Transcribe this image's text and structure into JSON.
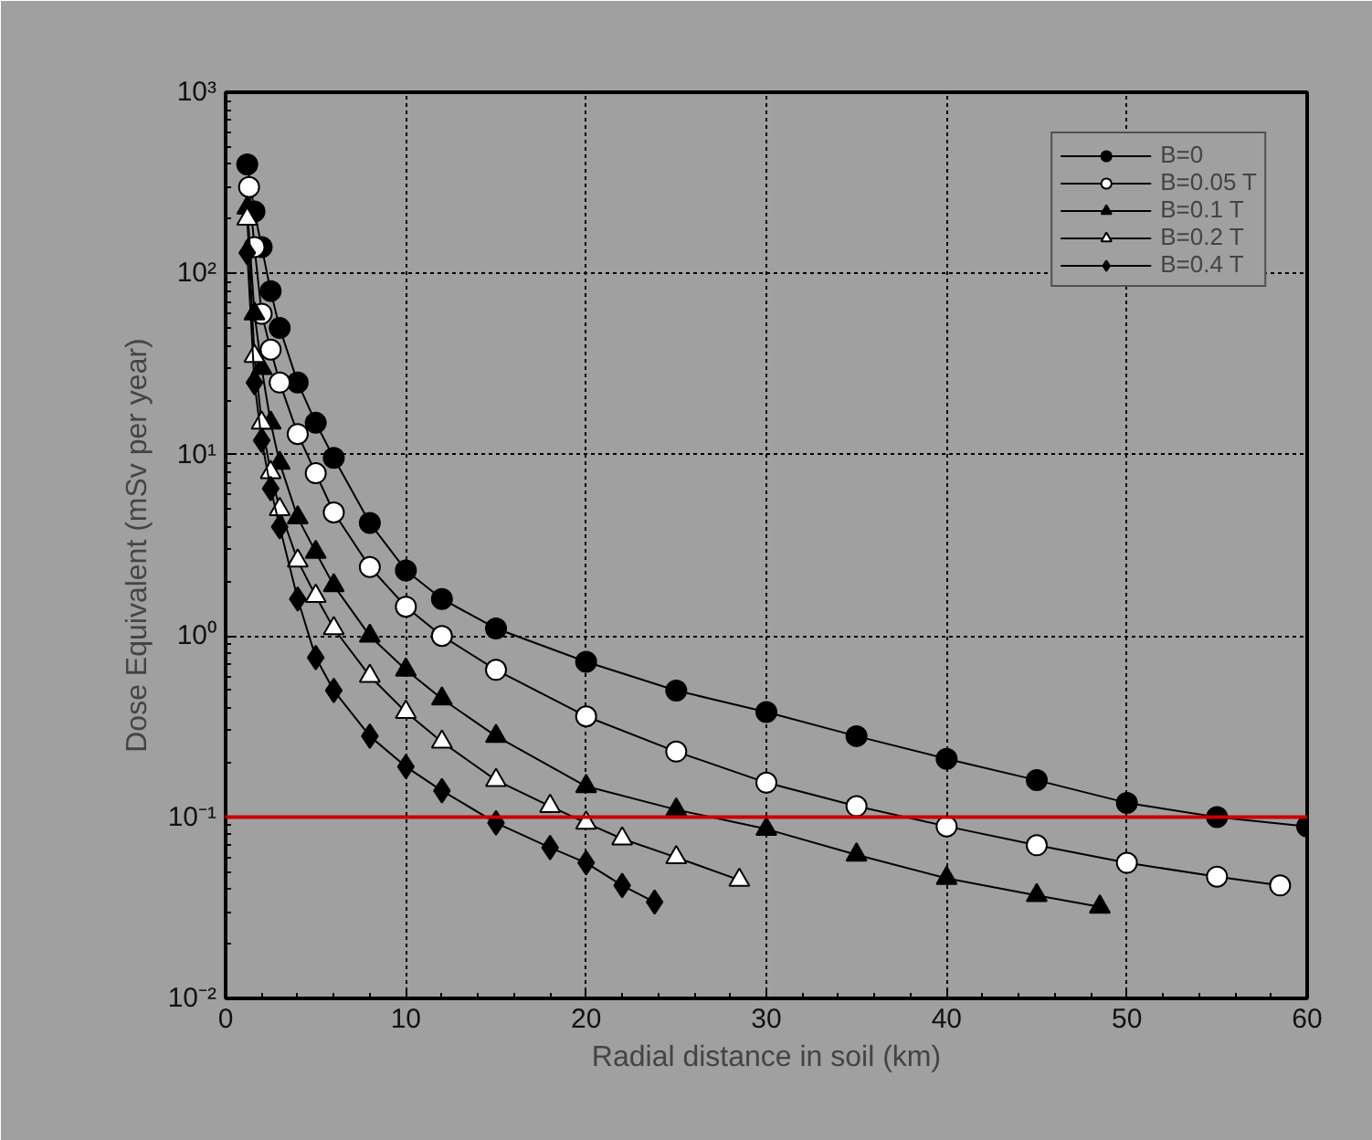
{
  "chart_data": {
    "type": "line",
    "xlabel": "Radial distance in soil (km)",
    "ylabel": "Dose Equivalent (mSv per year)",
    "log": "y",
    "xlim": [
      0,
      60
    ],
    "ylim": [
      0.01,
      1000
    ],
    "xticks": [
      0,
      10,
      20,
      30,
      40,
      50,
      60
    ],
    "yticks": [
      {
        "value": 0.01,
        "label": "10⁻²"
      },
      {
        "value": 0.1,
        "label": "10⁻¹"
      },
      {
        "value": 1,
        "label": "10⁰"
      },
      {
        "value": 10,
        "label": "10¹"
      },
      {
        "value": 100,
        "label": "10²"
      },
      {
        "value": 1000,
        "label": "10³"
      }
    ],
    "grid": true,
    "legend": "top right",
    "line_style": "solid",
    "ref_lines": [
      {
        "axis": "y",
        "value": 0.1,
        "label": null,
        "color": "#cc0000"
      }
    ],
    "series": [
      {
        "name": "B=0",
        "color": "#000000",
        "marker": "circle",
        "x": [
          1.2,
          1.6,
          2,
          2.5,
          3,
          4,
          5,
          6,
          8,
          10,
          12,
          15,
          20,
          25,
          30,
          35,
          40,
          45,
          50,
          55,
          60
        ],
        "values": [
          400,
          220,
          140,
          80,
          50,
          25,
          15,
          9.6,
          4.2,
          2.3,
          1.6,
          1.1,
          0.72,
          0.5,
          0.38,
          0.28,
          0.21,
          0.16,
          0.12,
          0.1,
          0.089
        ]
      },
      {
        "name": "B=0.05 T",
        "color": "#ffffff",
        "marker": "circle",
        "x": [
          1.3,
          1.6,
          2,
          2.5,
          3,
          4,
          5,
          6,
          8,
          10,
          12,
          15,
          20,
          25,
          30,
          35,
          40,
          45,
          50,
          55,
          58.5
        ],
        "values": [
          300,
          140,
          60,
          38,
          25,
          13,
          7.9,
          4.8,
          2.4,
          1.45,
          1.0,
          0.65,
          0.36,
          0.23,
          0.155,
          0.115,
          0.089,
          0.07,
          0.056,
          0.047,
          0.042
        ]
      },
      {
        "name": "B=0.1 T",
        "color": "#000000",
        "marker": "triangle",
        "x": [
          1.2,
          1.6,
          2,
          2.5,
          3,
          4,
          5,
          6,
          8,
          10,
          12,
          15,
          20,
          25,
          30,
          35,
          40,
          45,
          48.5
        ],
        "values": [
          230,
          60,
          30,
          15,
          9,
          4.5,
          2.9,
          1.9,
          1.0,
          0.65,
          0.45,
          0.28,
          0.148,
          0.11,
          0.086,
          0.062,
          0.046,
          0.037,
          0.032
        ]
      },
      {
        "name": "B=0.2 T",
        "color": "#ffffff",
        "marker": "triangle",
        "x": [
          1.2,
          1.6,
          2,
          2.5,
          3,
          4,
          5,
          6,
          8,
          10,
          12,
          15,
          18,
          20,
          22,
          25,
          28.5
        ],
        "values": [
          200,
          35,
          15,
          8,
          5,
          2.6,
          1.66,
          1.1,
          0.6,
          0.38,
          0.26,
          0.16,
          0.115,
          0.093,
          0.076,
          0.06,
          0.045
        ]
      },
      {
        "name": "B=0.4 T",
        "color": "#000000",
        "marker": "diamond",
        "x": [
          1.2,
          1.6,
          2,
          2.5,
          3,
          4,
          5,
          6,
          8,
          10,
          12,
          15,
          18,
          20,
          22,
          23.8
        ],
        "values": [
          130,
          25,
          12,
          6.5,
          4,
          1.6,
          0.76,
          0.5,
          0.28,
          0.19,
          0.14,
          0.093,
          0.068,
          0.056,
          0.042,
          0.034
        ]
      }
    ]
  }
}
